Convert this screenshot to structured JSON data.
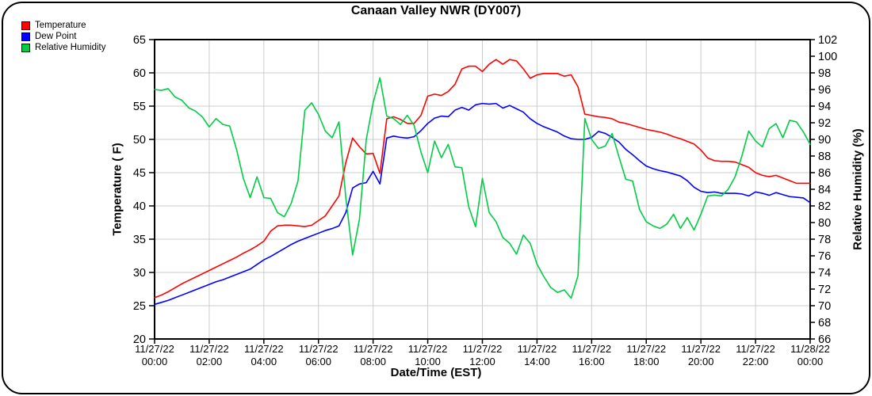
{
  "title": "Canaan Valley NWR (DY007)",
  "legend": {
    "items": [
      {
        "label": "Temperature",
        "color": "#ff0000"
      },
      {
        "label": "Dew Point",
        "color": "#0000ff"
      },
      {
        "label": "Relative Humidity",
        "color": "#00cc44"
      }
    ]
  },
  "colors": {
    "background": "#ffffff",
    "grid": "#cccccc",
    "axis": "#000000",
    "temperature": "#ff0000",
    "dew_point": "#0000ff",
    "relative_humidity": "#00cc44"
  },
  "chart_data": {
    "type": "line",
    "title": "Canaan Valley NWR (DY007)",
    "xlabel": "Date/Time (EST)",
    "ylabel_left": "Temperature ( F)",
    "ylabel_right": "Relative Humidity (%)",
    "ylim_left": [
      20,
      65
    ],
    "ytick_step_left": 5,
    "ylim_right": [
      66,
      102
    ],
    "ytick_step_right": 2,
    "x_range_hours": [
      0,
      24
    ],
    "x_tick_step_hours": 2,
    "grid": true,
    "legend_position": "top-left",
    "x_ticks": [
      {
        "date": "11/27/22",
        "time": "00:00"
      },
      {
        "date": "11/27/22",
        "time": "02:00"
      },
      {
        "date": "11/27/22",
        "time": "04:00"
      },
      {
        "date": "11/27/22",
        "time": "06:00"
      },
      {
        "date": "11/27/22",
        "time": "08:00"
      },
      {
        "date": "11/27/22",
        "time": "10:00"
      },
      {
        "date": "11/27/22",
        "time": "12:00"
      },
      {
        "date": "11/27/22",
        "time": "14:00"
      },
      {
        "date": "11/27/22",
        "time": "16:00"
      },
      {
        "date": "11/27/22",
        "time": "18:00"
      },
      {
        "date": "11/27/22",
        "time": "20:00"
      },
      {
        "date": "11/27/22",
        "time": "22:00"
      },
      {
        "date": "11/28/22",
        "time": "00:00"
      }
    ],
    "sample_interval_minutes": 15,
    "series": [
      {
        "name": "Temperature",
        "axis": "left",
        "units": "F",
        "color": "#ff0000",
        "values": [
          26.2,
          26.6,
          27.1,
          27.7,
          28.3,
          28.8,
          29.3,
          29.8,
          30.3,
          30.8,
          31.3,
          31.8,
          32.3,
          32.9,
          33.4,
          34.0,
          34.7,
          36.2,
          37.0,
          37.1,
          37.1,
          37.0,
          36.9,
          37.1,
          37.8,
          38.5,
          40.0,
          41.5,
          46.5,
          50.2,
          48.9,
          47.8,
          47.9,
          44.9,
          53.1,
          53.4,
          53.0,
          52.4,
          52.4,
          53.6,
          56.5,
          56.8,
          56.6,
          57.2,
          58.3,
          60.6,
          61.0,
          61.0,
          60.2,
          61.3,
          62.0,
          61.3,
          62.0,
          61.8,
          60.6,
          59.2,
          59.7,
          59.9,
          59.9,
          59.9,
          59.5,
          59.7,
          57.9,
          53.8,
          53.6,
          53.4,
          53.3,
          53.1,
          52.6,
          52.4,
          52.1,
          51.8,
          51.5,
          51.3,
          51.1,
          50.8,
          50.4,
          50.1,
          49.7,
          49.3,
          48.4,
          47.2,
          46.8,
          46.7,
          46.7,
          46.6,
          46.2,
          45.8,
          45.0,
          44.6,
          44.4,
          44.6,
          44.2,
          43.8,
          43.4,
          43.4,
          43.4
        ]
      },
      {
        "name": "Dew Point",
        "axis": "left",
        "units": "F",
        "color": "#0000ff",
        "values": [
          25.2,
          25.5,
          25.8,
          26.2,
          26.6,
          27.0,
          27.4,
          27.8,
          28.2,
          28.6,
          28.9,
          29.3,
          29.7,
          30.1,
          30.5,
          31.2,
          31.9,
          32.4,
          33.0,
          33.6,
          34.2,
          34.7,
          35.1,
          35.5,
          35.9,
          36.3,
          36.6,
          37.0,
          39.0,
          42.7,
          43.3,
          43.5,
          45.2,
          43.3,
          50.2,
          50.5,
          50.3,
          50.2,
          50.4,
          51.3,
          52.4,
          53.2,
          53.5,
          53.4,
          54.4,
          54.8,
          54.4,
          55.2,
          55.4,
          55.3,
          55.4,
          54.7,
          55.1,
          54.6,
          54.1,
          53.1,
          52.4,
          51.9,
          51.5,
          51.1,
          50.5,
          50.1,
          50.0,
          50.0,
          50.3,
          51.2,
          50.9,
          50.3,
          49.6,
          48.5,
          47.7,
          46.8,
          46.0,
          45.6,
          45.3,
          45.1,
          44.8,
          44.5,
          43.8,
          42.8,
          42.2,
          42.0,
          42.1,
          41.9,
          41.9,
          41.9,
          41.8,
          41.5,
          42.1,
          41.9,
          41.6,
          42.0,
          41.7,
          41.4,
          41.3,
          41.2,
          40.5
        ]
      },
      {
        "name": "Relative Humidity",
        "axis": "right",
        "units": "%",
        "color": "#00cc44",
        "values": [
          96.0,
          95.9,
          96.1,
          95.1,
          94.7,
          93.8,
          93.4,
          92.7,
          91.5,
          92.5,
          91.8,
          91.6,
          88.8,
          85.3,
          83.0,
          85.5,
          83.0,
          82.9,
          81.2,
          80.7,
          82.3,
          85.0,
          93.5,
          94.4,
          93.0,
          91.0,
          90.2,
          92.1,
          83.0,
          76.1,
          80.4,
          90.0,
          94.4,
          97.4,
          92.8,
          92.5,
          91.8,
          92.9,
          91.7,
          88.5,
          86.0,
          89.8,
          87.8,
          89.4,
          86.7,
          86.6,
          81.9,
          79.5,
          85.3,
          81.2,
          80.1,
          78.2,
          77.5,
          76.2,
          78.5,
          77.5,
          75.0,
          73.5,
          72.2,
          71.6,
          71.9,
          70.9,
          73.6,
          92.5,
          90.0,
          88.9,
          89.2,
          90.7,
          87.9,
          85.2,
          85.0,
          81.6,
          80.1,
          79.6,
          79.3,
          79.8,
          81.0,
          79.3,
          80.6,
          79.1,
          81.0,
          83.2,
          83.3,
          83.2,
          84.0,
          85.5,
          88.0,
          91.0,
          89.8,
          89.1,
          91.3,
          91.9,
          90.2,
          92.3,
          92.1,
          90.9,
          89.4
        ]
      }
    ]
  }
}
